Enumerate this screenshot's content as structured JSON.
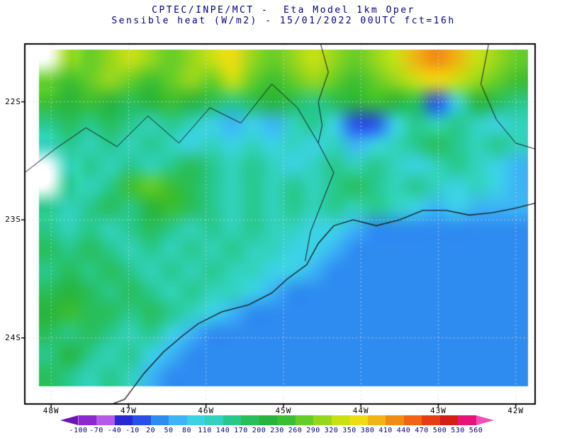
{
  "header": {
    "title_line1": "CPTEC/INPE/MCT -  Eta Model 1km Oper",
    "title_line2": "Sensible heat (W/m2) - 15/01/2022 00UTC fct=16h"
  },
  "axes": {
    "y_ticks": [
      "22S",
      "23S",
      "24S"
    ],
    "x_ticks": [
      "48W",
      "47W",
      "46W",
      "45W",
      "44W",
      "43W",
      "42W"
    ]
  },
  "colorbar": {
    "levels": [
      -100,
      -70,
      -40,
      -10,
      20,
      50,
      80,
      110,
      140,
      170,
      200,
      230,
      260,
      290,
      320,
      350,
      380,
      410,
      440,
      470,
      500,
      530,
      560
    ],
    "colors": [
      "#6e14b4",
      "#8c28d2",
      "#b45ae6",
      "#2828d2",
      "#2850e6",
      "#2e8cf0",
      "#3cb4f5",
      "#3cd2e6",
      "#32d2be",
      "#28c88c",
      "#28be5a",
      "#28b43c",
      "#3cbe32",
      "#64cd28",
      "#96d71e",
      "#c8e114",
      "#f0dc14",
      "#f0b414",
      "#f08c14",
      "#f06414",
      "#e63c14",
      "#d21e14",
      "#e61478",
      "#f050b4"
    ]
  },
  "style": {
    "background": "#ffffff",
    "title_color": "#000080",
    "axis_label_color": "#000000",
    "colorbar_label_color": "#000080",
    "frame": "#000000",
    "coastline": "#1a1a1a",
    "gridline": "#d8d8d8"
  },
  "chart_data": {
    "type": "heatmap",
    "title": "CPTEC/INPE/MCT -  Eta Model 1km Oper",
    "subtitle": "Sensible heat (W/m2) - 15/01/2022 00UTC fct=16h",
    "model": "Eta Model 1km Oper",
    "variable": "Sensible heat",
    "units": "W/m2",
    "valid": "15/01/2022 00UTC fct=16h",
    "lon_range": [
      -48.34,
      -41.75
    ],
    "lat_range": [
      -24.56,
      -21.51
    ],
    "x_tick_lons": [
      -48,
      -47,
      -46,
      -45,
      -44,
      -43,
      -42
    ],
    "y_tick_lats": [
      -22,
      -23,
      -24
    ],
    "levels": [
      -100,
      -70,
      -40,
      -10,
      20,
      50,
      80,
      110,
      140,
      170,
      200,
      230,
      260,
      290,
      320,
      350,
      380,
      410,
      440,
      470,
      500,
      530,
      560
    ],
    "palette": [
      "#6e14b4",
      "#8c28d2",
      "#b45ae6",
      "#2828d2",
      "#2850e6",
      "#2e8cf0",
      "#3cb4f5",
      "#3cd2e6",
      "#32d2be",
      "#28c88c",
      "#28be5a",
      "#28b43c",
      "#3cbe32",
      "#64cd28",
      "#96d71e",
      "#c8e114",
      "#f0dc14",
      "#f0b414",
      "#f08c14",
      "#f06414",
      "#e63c14",
      "#d21e14",
      "#e61478",
      "#f050b4"
    ],
    "grid": {
      "lon0": -48.16,
      "lon1": -41.84,
      "lat0": -21.56,
      "lat1": -24.41,
      "cols": 24,
      "rows": 16,
      "values_wm2": [
        [
          null,
          290,
          260,
          290,
          320,
          290,
          260,
          290,
          320,
          350,
          290,
          260,
          290,
          320,
          290,
          260,
          290,
          320,
          380,
          410,
          380,
          320,
          290,
          260
        ],
        [
          260,
          230,
          260,
          290,
          260,
          230,
          260,
          290,
          260,
          320,
          260,
          230,
          260,
          290,
          260,
          230,
          260,
          290,
          320,
          350,
          320,
          290,
          260,
          230
        ],
        [
          230,
          200,
          230,
          200,
          170,
          200,
          230,
          200,
          170,
          140,
          170,
          200,
          170,
          140,
          170,
          200,
          230,
          200,
          170,
          0,
          80,
          200,
          170,
          140
        ],
        [
          140,
          170,
          140,
          170,
          140,
          110,
          140,
          110,
          80,
          50,
          80,
          50,
          110,
          140,
          80,
          0,
          0,
          80,
          140,
          110,
          140,
          110,
          80,
          110
        ],
        [
          110,
          140,
          110,
          140,
          110,
          140,
          110,
          80,
          110,
          80,
          110,
          80,
          110,
          80,
          110,
          50,
          80,
          110,
          140,
          170,
          140,
          110,
          140,
          110
        ],
        [
          null,
          110,
          140,
          110,
          140,
          110,
          140,
          170,
          140,
          110,
          140,
          110,
          80,
          110,
          140,
          110,
          140,
          110,
          80,
          110,
          140,
          110,
          80,
          50
        ],
        [
          null,
          140,
          110,
          140,
          230,
          260,
          230,
          170,
          140,
          110,
          140,
          110,
          140,
          110,
          140,
          170,
          140,
          110,
          140,
          110,
          80,
          110,
          80,
          50
        ],
        [
          140,
          110,
          140,
          170,
          140,
          200,
          230,
          170,
          140,
          110,
          140,
          110,
          140,
          110,
          140,
          110,
          140,
          110,
          80,
          50,
          80,
          50,
          50,
          50
        ],
        [
          140,
          110,
          140,
          110,
          140,
          170,
          140,
          110,
          140,
          110,
          140,
          110,
          110,
          80,
          80,
          50,
          30,
          30,
          30,
          30,
          30,
          30,
          30,
          30
        ],
        [
          170,
          140,
          170,
          140,
          110,
          140,
          110,
          140,
          110,
          140,
          110,
          110,
          80,
          80,
          50,
          30,
          30,
          30,
          30,
          30,
          30,
          30,
          30,
          30
        ],
        [
          140,
          170,
          140,
          170,
          140,
          110,
          140,
          110,
          140,
          110,
          110,
          80,
          80,
          50,
          30,
          30,
          30,
          30,
          30,
          30,
          30,
          30,
          30,
          30
        ],
        [
          170,
          200,
          170,
          140,
          170,
          140,
          110,
          140,
          110,
          110,
          80,
          50,
          30,
          30,
          30,
          30,
          30,
          30,
          30,
          30,
          30,
          30,
          30,
          30
        ],
        [
          200,
          230,
          170,
          170,
          140,
          170,
          140,
          110,
          80,
          50,
          30,
          30,
          30,
          30,
          30,
          30,
          30,
          30,
          30,
          30,
          30,
          30,
          30,
          30
        ],
        [
          170,
          140,
          170,
          140,
          110,
          140,
          80,
          50,
          30,
          30,
          30,
          30,
          30,
          30,
          30,
          30,
          30,
          30,
          30,
          30,
          30,
          30,
          30,
          30
        ],
        [
          140,
          200,
          140,
          110,
          140,
          80,
          50,
          30,
          30,
          30,
          30,
          30,
          30,
          30,
          30,
          30,
          30,
          30,
          30,
          30,
          30,
          30,
          30,
          30
        ],
        [
          170,
          140,
          110,
          140,
          110,
          50,
          30,
          30,
          30,
          30,
          30,
          30,
          30,
          30,
          30,
          30,
          30,
          30,
          30,
          30,
          30,
          30,
          30,
          30
        ]
      ]
    },
    "coastline": [
      [
        -48.3,
        -25.0
      ],
      [
        -47.9,
        -24.75
      ],
      [
        -47.45,
        -24.62
      ],
      [
        -47.05,
        -24.52
      ],
      [
        -46.8,
        -24.3
      ],
      [
        -46.55,
        -24.12
      ],
      [
        -46.3,
        -23.98
      ],
      [
        -46.1,
        -23.88
      ],
      [
        -45.8,
        -23.78
      ],
      [
        -45.45,
        -23.72
      ],
      [
        -45.15,
        -23.62
      ],
      [
        -44.95,
        -23.5
      ],
      [
        -44.7,
        -23.38
      ],
      [
        -44.55,
        -23.2
      ],
      [
        -44.35,
        -23.05
      ],
      [
        -44.1,
        -23.0
      ],
      [
        -43.8,
        -23.05
      ],
      [
        -43.5,
        -23.0
      ],
      [
        -43.2,
        -22.92
      ],
      [
        -42.9,
        -22.92
      ],
      [
        -42.6,
        -22.96
      ],
      [
        -42.3,
        -22.94
      ],
      [
        -42.0,
        -22.9
      ],
      [
        -41.7,
        -22.85
      ]
    ],
    "borders": [
      [
        [
          -48.34,
          -22.6
        ],
        [
          -47.95,
          -22.4
        ],
        [
          -47.55,
          -22.22
        ],
        [
          -47.15,
          -22.38
        ],
        [
          -46.75,
          -22.12
        ],
        [
          -46.35,
          -22.35
        ],
        [
          -45.95,
          -22.05
        ],
        [
          -45.55,
          -22.18
        ],
        [
          -45.15,
          -21.85
        ],
        [
          -44.82,
          -22.05
        ],
        [
          -44.55,
          -22.35
        ],
        [
          -44.35,
          -22.6
        ],
        [
          -44.5,
          -22.85
        ],
        [
          -44.65,
          -23.1
        ],
        [
          -44.72,
          -23.35
        ]
      ],
      [
        [
          -44.52,
          -21.51
        ],
        [
          -44.42,
          -21.75
        ],
        [
          -44.55,
          -22.0
        ],
        [
          -44.5,
          -22.2
        ],
        [
          -44.55,
          -22.35
        ]
      ],
      [
        [
          -42.35,
          -21.51
        ],
        [
          -42.45,
          -21.85
        ],
        [
          -42.25,
          -22.15
        ],
        [
          -42.0,
          -22.35
        ],
        [
          -41.75,
          -22.4
        ]
      ]
    ]
  }
}
